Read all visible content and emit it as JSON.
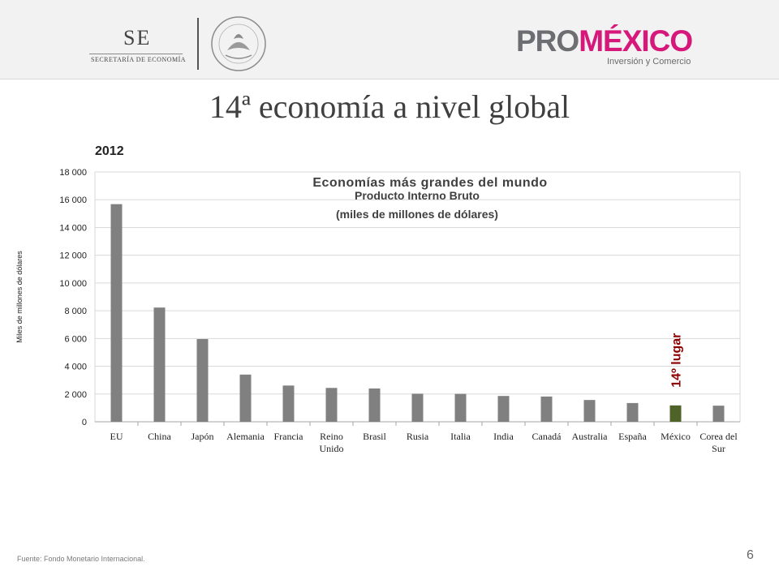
{
  "header": {
    "se_logo": {
      "abbr": "SE",
      "subtitle": "SECRETARÍA DE ECONOMÍA"
    },
    "seal_text": "ESTADOS UNIDOS MEXICANOS",
    "promexico": {
      "pro": "PRO",
      "mexico": "MÉXICO",
      "tagline": "Inversión y Comercio"
    }
  },
  "slide": {
    "title": "14ª economía a nivel global",
    "year": "2012",
    "page_number": "6"
  },
  "footer": {
    "source": "Fuente: Fondo Monetario Internacional."
  },
  "colors": {
    "bar": "#808080",
    "highlight_bar": "#4f6228",
    "annotation": "#8b0000",
    "grid": "#d9d9d9"
  },
  "chart_data": {
    "type": "bar",
    "title": "Economías más grandes del mundo",
    "subtitle_lines": [
      "Producto Interno Bruto",
      "(miles de millones de dólares)"
    ],
    "ylabel": "Miles de millones de dólares",
    "ylim": [
      0,
      18000
    ],
    "yticks": [
      0,
      2000,
      4000,
      6000,
      8000,
      10000,
      12000,
      14000,
      16000,
      18000
    ],
    "ytick_labels": [
      "0",
      "2 000",
      "4 000",
      "6 000",
      "8 000",
      "10 000",
      "12 000",
      "14 000",
      "16 000",
      "18 000"
    ],
    "grid": true,
    "categories": [
      "EU",
      "China",
      "Japón",
      "Alemania",
      "Francia",
      "Reino Unido",
      "Brasil",
      "Rusia",
      "Italia",
      "India",
      "Canadá",
      "Australia",
      "España",
      "México",
      "Corea del Sur"
    ],
    "category_lines": [
      [
        "EU"
      ],
      [
        "China"
      ],
      [
        "Japón"
      ],
      [
        "Alemania"
      ],
      [
        "Francia"
      ],
      [
        "Reino",
        "Unido"
      ],
      [
        "Brasil"
      ],
      [
        "Rusia"
      ],
      [
        "Italia"
      ],
      [
        "India"
      ],
      [
        "Canadá"
      ],
      [
        "Australia"
      ],
      [
        "España"
      ],
      [
        "México"
      ],
      [
        "Corea del",
        "Sur"
      ]
    ],
    "values": [
      15680,
      8230,
      5960,
      3400,
      2610,
      2440,
      2400,
      2020,
      2010,
      1860,
      1820,
      1570,
      1350,
      1180,
      1160
    ],
    "highlight": "México",
    "annotation": "14º lugar"
  }
}
